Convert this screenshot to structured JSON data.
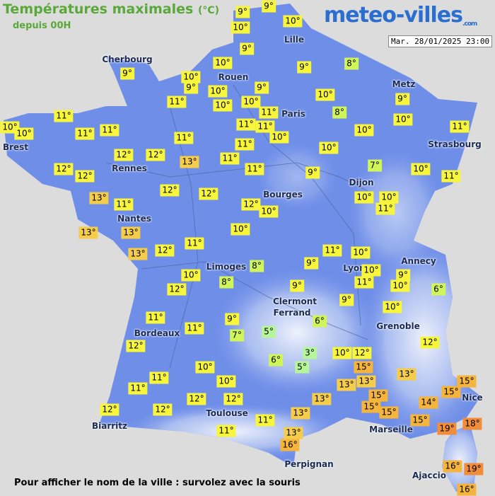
{
  "header": {
    "title": "Températures maximales",
    "unit": "(°C)",
    "subtitle": "depuis 00H"
  },
  "logo": {
    "name": "meteo-villes",
    "suffix": ".com"
  },
  "timestamp": "Mar. 28/01/2025 23:00",
  "cities": [
    "Cherbourg",
    "Rouen",
    "Lille",
    "Metz",
    "Paris",
    "Brest",
    "Rennes",
    "Strasbourg",
    "Dijon",
    "Bourges",
    "Nantes",
    "Annecy",
    "Limoges",
    "Lyon",
    "Clermont",
    "Ferrand",
    "Grenoble",
    "Bordeaux",
    "Nice",
    "Toulouse",
    "Marseille",
    "Biarritz",
    "Perpignan",
    "Ajaccio"
  ],
  "temperatures": [
    "9°",
    "9°",
    "10°",
    "10°",
    "9°",
    "9°",
    "10°",
    "9°",
    "8°",
    "10°",
    "9°",
    "10°",
    "9°",
    "10°",
    "10°",
    "10°",
    "9°",
    "11°",
    "11°",
    "8°",
    "10°",
    "11°",
    "10°",
    "10°",
    "11°",
    "11°",
    "11°",
    "11°",
    "10°",
    "10°",
    "11°",
    "11°",
    "11°",
    "10°",
    "12°",
    "12°",
    "13°",
    "11°",
    "7°",
    "12°",
    "12°",
    "11°",
    "9°",
    "10°",
    "11°",
    "13°",
    "12°",
    "12°",
    "10°",
    "10°",
    "11°",
    "11°",
    "12°",
    "10°",
    "13°",
    "13°",
    "10°",
    "11°",
    "11°",
    "10°",
    "13°",
    "12°",
    "9°",
    "8°",
    "10°",
    "9°",
    "10°",
    "8°",
    "11°",
    "10°",
    "12°",
    "9°",
    "6°",
    "9°",
    "10°",
    "11°",
    "9°",
    "6°",
    "11°",
    "5°",
    "7°",
    "12°",
    "12°",
    "3°",
    "10°",
    "12°",
    "6°",
    "5°",
    "15°",
    "10°",
    "13°",
    "11°",
    "10°",
    "13°",
    "13°",
    "15°",
    "15°",
    "11°",
    "12°",
    "12°",
    "13°",
    "15°",
    "15°",
    "14°",
    "15°",
    "13°",
    "12°",
    "12°",
    "11°",
    "15°",
    "19°",
    "18°",
    "13°",
    "11°",
    "16°",
    "16°",
    "19°",
    "16°"
  ],
  "footer": "Pour afficher le nom de la ville : survolez avec la souris"
}
